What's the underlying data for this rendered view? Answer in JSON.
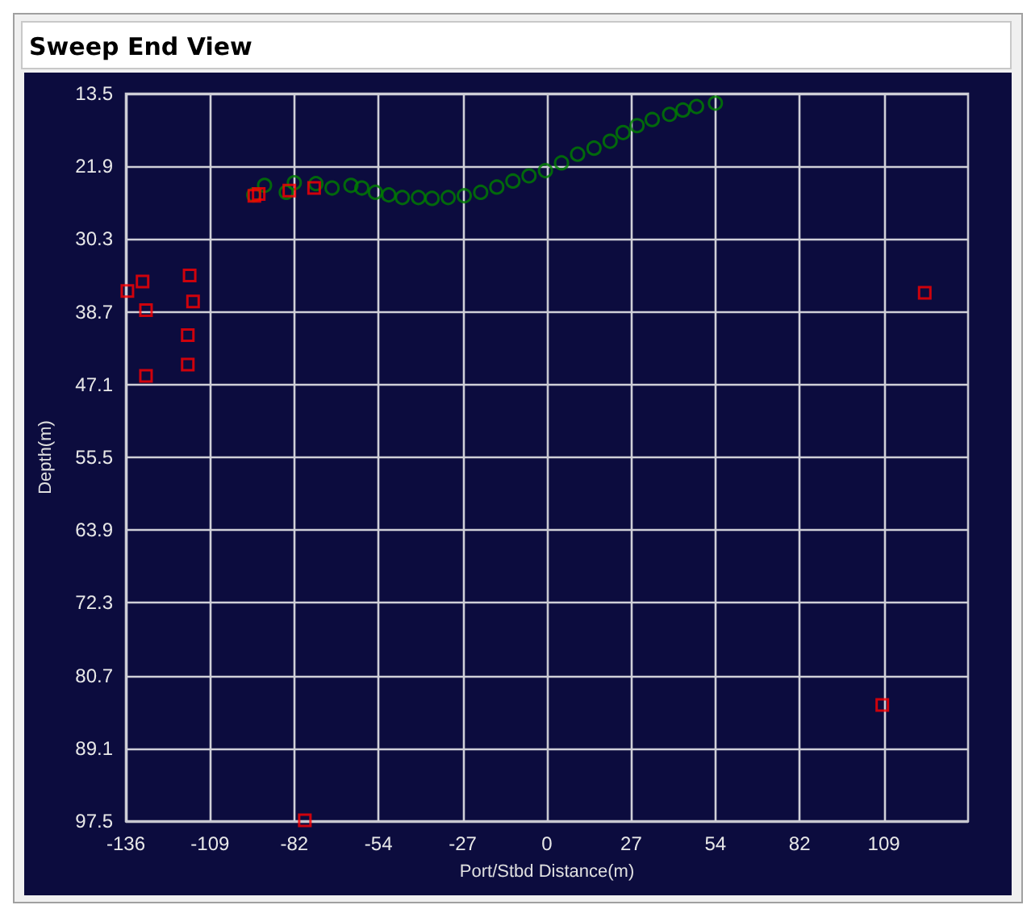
{
  "chart_data": {
    "type": "scatter",
    "title": "Sweep End View",
    "xlabel": "Port/Stbd Distance(m)",
    "ylabel": "Depth(m)",
    "xlim": [
      -136,
      136
    ],
    "xticks": [
      -136,
      {
        "value": -108.8,
        "label": "-109"
      },
      {
        "value": -81.6,
        "label": "-82"
      },
      {
        "value": -54.4,
        "label": "-54"
      },
      {
        "value": -27.2,
        "label": "-27"
      },
      0,
      {
        "value": 27.2,
        "label": "27"
      },
      {
        "value": 54.4,
        "label": "54"
      },
      {
        "value": 81.6,
        "label": "82"
      },
      {
        "value": 108.8,
        "label": "109"
      }
    ],
    "ylim": [
      97.5,
      13.5
    ],
    "yticks": [
      13.5,
      21.9,
      30.3,
      38.7,
      47.1,
      55.5,
      63.9,
      72.3,
      80.7,
      89.1,
      97.5
    ],
    "grid": true,
    "series": [
      {
        "color": "#008000",
        "marker": "circle",
        "x": [
          -94.7,
          -91.2,
          -84.2,
          -81.6,
          -74.6,
          -69.4,
          -63.3,
          -59.8,
          -55.4,
          -51.1,
          -46.7,
          -41.5,
          -37.1,
          -31.9,
          -26.7,
          -21.4,
          -16.2,
          -11.0,
          -5.8,
          -0.5,
          4.7,
          9.9,
          15.2,
          20.4,
          24.6,
          29.1,
          34.0,
          39.6,
          43.9,
          48.3,
          54.4
        ],
        "values": [
          25.2,
          24.1,
          24.9,
          23.8,
          23.9,
          24.4,
          24.1,
          24.4,
          24.9,
          25.2,
          25.5,
          25.5,
          25.6,
          25.5,
          25.3,
          24.9,
          24.3,
          23.6,
          23.0,
          22.4,
          21.5,
          20.5,
          19.8,
          19.0,
          18.0,
          17.2,
          16.5,
          15.9,
          15.4,
          15.0,
          14.6
        ]
      },
      {
        "color": "#ff0000",
        "marker": "square",
        "x": [
          -135.5,
          -130.6,
          -129.5,
          -115.4,
          -114.3,
          -116,
          -116,
          -129.5,
          -94.5,
          -93.1,
          -83.2,
          -75.2,
          122,
          108.3,
          -78.2
        ],
        "values": [
          36.3,
          35.2,
          38.5,
          34.5,
          37.5,
          41.4,
          44.8,
          46.1,
          25.3,
          25.1,
          24.7,
          24.4,
          36.5,
          84.1,
          97.4
        ]
      }
    ]
  }
}
